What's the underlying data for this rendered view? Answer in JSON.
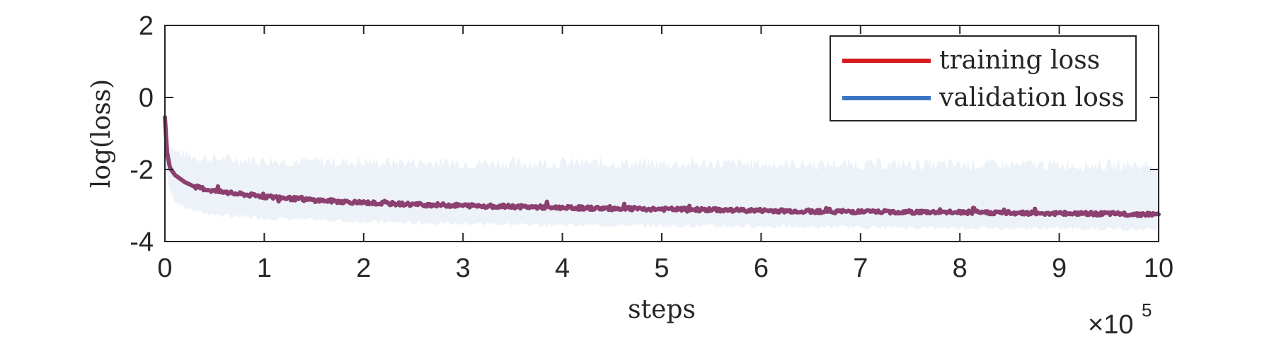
{
  "chart_data": {
    "type": "line",
    "xlabel": "steps",
    "ylabel": "log(loss)",
    "x_multiplier_base": "×10",
    "x_multiplier_exp": "5",
    "xlim": [
      0,
      10
    ],
    "ylim": [
      -4,
      2
    ],
    "xticks": [
      "0",
      "1",
      "2",
      "3",
      "4",
      "5",
      "6",
      "7",
      "8",
      "9",
      "10"
    ],
    "yticks": [
      "-4",
      "-2",
      "0",
      "2"
    ],
    "grid": false,
    "legend_position": "top-right",
    "series": [
      {
        "name": "training loss",
        "color": "#d7191c",
        "x": [
          0,
          0.02,
          0.05,
          0.1,
          0.2,
          0.3,
          0.5,
          0.7,
          1,
          1.5,
          2,
          2.5,
          3,
          3.5,
          4,
          4.5,
          5,
          5.5,
          6,
          6.5,
          7,
          7.5,
          8,
          8.5,
          9,
          9.5,
          10
        ],
        "y": [
          -0.55,
          -1.5,
          -1.95,
          -2.15,
          -2.35,
          -2.48,
          -2.6,
          -2.67,
          -2.75,
          -2.85,
          -2.92,
          -2.97,
          -3.0,
          -3.03,
          -3.06,
          -3.08,
          -3.1,
          -3.12,
          -3.14,
          -3.16,
          -3.17,
          -3.18,
          -3.19,
          -3.2,
          -3.22,
          -3.23,
          -3.25
        ]
      },
      {
        "name": "validation loss",
        "color": "#3a75c4",
        "x": [
          0,
          0.02,
          0.05,
          0.1,
          0.2,
          0.3,
          0.5,
          0.7,
          1,
          1.5,
          2,
          2.5,
          3,
          3.5,
          4,
          4.5,
          5,
          5.5,
          6,
          6.5,
          7,
          7.5,
          8,
          8.5,
          9,
          9.5,
          10
        ],
        "y": [
          -0.55,
          -1.5,
          -1.95,
          -2.15,
          -2.35,
          -2.48,
          -2.6,
          -2.67,
          -2.75,
          -2.85,
          -2.92,
          -2.97,
          -3.0,
          -3.03,
          -3.06,
          -3.08,
          -3.1,
          -3.12,
          -3.14,
          -3.16,
          -3.17,
          -3.18,
          -3.19,
          -3.2,
          -3.22,
          -3.23,
          -3.25
        ],
        "band_upper": [
          -0.6,
          -1.0,
          -1.3,
          -1.5,
          -1.6,
          -1.65,
          -1.7,
          -1.72,
          -1.75,
          -1.78,
          -1.8,
          -1.8,
          -1.82,
          -1.82,
          -1.82,
          -1.83,
          -1.84,
          -1.84,
          -1.85,
          -1.85,
          -1.86,
          -1.86,
          -1.86,
          -1.87,
          -1.87,
          -1.88,
          -1.88
        ],
        "band_lower": [
          -0.6,
          -2.2,
          -2.6,
          -2.85,
          -3.05,
          -3.15,
          -3.25,
          -3.3,
          -3.35,
          -3.4,
          -3.45,
          -3.48,
          -3.5,
          -3.52,
          -3.54,
          -3.55,
          -3.56,
          -3.57,
          -3.58,
          -3.6,
          -3.6,
          -3.61,
          -3.62,
          -3.63,
          -3.64,
          -3.65,
          -3.66
        ]
      }
    ],
    "overlap_color": "#8b4070",
    "band_color": "#dce7f1"
  }
}
